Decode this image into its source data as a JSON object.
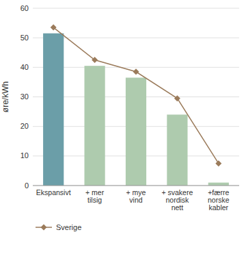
{
  "chart_data": {
    "type": "bar",
    "categories": [
      "Ekspansivt",
      "+ mer\ntilsig",
      "+ mye\nvind",
      "+ svakere\nnordisk\nnett",
      "+færre\nnorske\nkabler"
    ],
    "series": [
      {
        "type": "bar",
        "colors": [
          "#6b9ea8",
          "#aecbae",
          "#aecbae",
          "#aecbae",
          "#aecbae"
        ],
        "values": [
          51.5,
          40.5,
          36.5,
          24.0,
          1.0
        ]
      },
      {
        "type": "line",
        "name": "Sverige",
        "color": "#9b7b5b",
        "marker": "diamond",
        "values": [
          53.5,
          42.5,
          38.5,
          29.5,
          7.5
        ]
      }
    ],
    "ylabel": "øre/kWh",
    "ylim": [
      0,
      60
    ],
    "yticks": [
      0,
      10,
      20,
      30,
      40,
      50,
      60
    ],
    "grid": true,
    "legend": "bottom"
  }
}
